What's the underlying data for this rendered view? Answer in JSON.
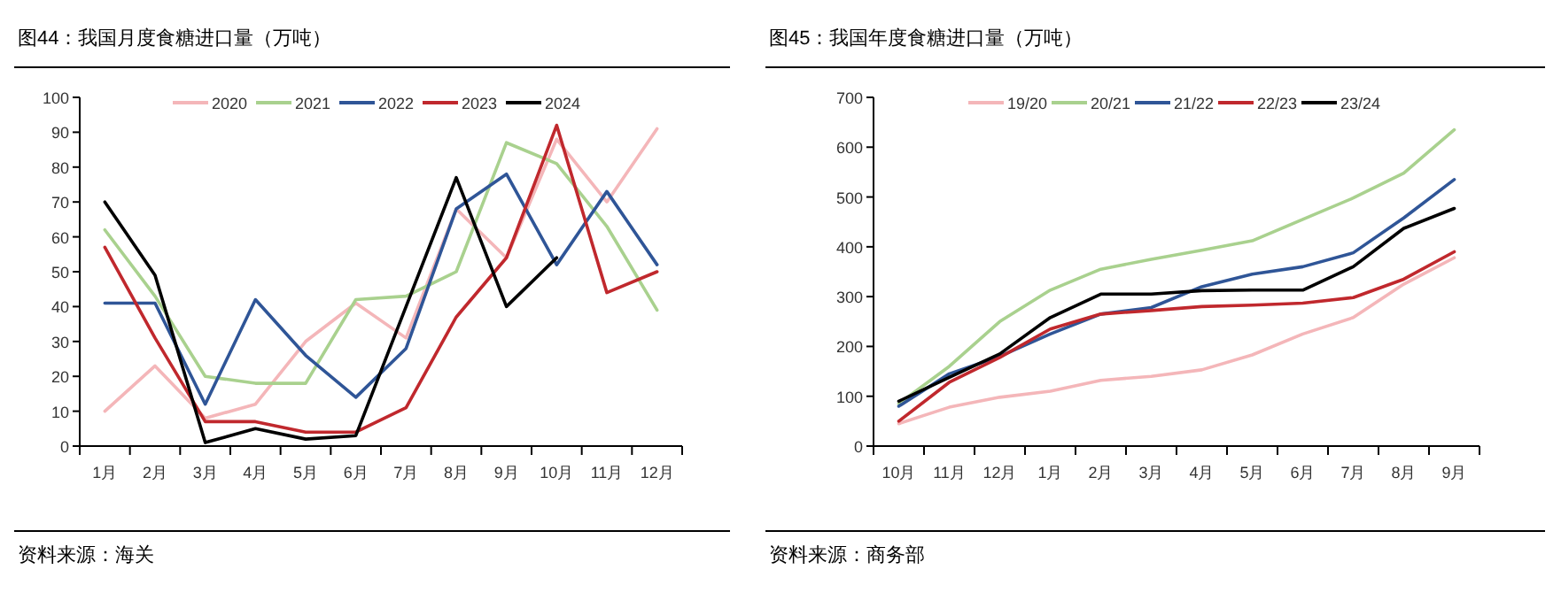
{
  "chart_data": [
    {
      "type": "line",
      "title": "图44：我国月度食糖进口量（万吨）",
      "categories": [
        "1月",
        "2月",
        "3月",
        "4月",
        "5月",
        "6月",
        "7月",
        "8月",
        "9月",
        "10月",
        "11月",
        "12月"
      ],
      "ylim": [
        0,
        100
      ],
      "yticks": [
        0,
        10,
        20,
        30,
        40,
        50,
        60,
        70,
        80,
        90,
        100
      ],
      "legend": "top",
      "series": [
        {
          "name": "2020",
          "color": "#f4b6b9",
          "values": [
            10,
            23,
            8,
            12,
            30,
            41,
            31,
            68,
            54,
            88,
            70,
            91
          ]
        },
        {
          "name": "2021",
          "color": "#a9d18e",
          "values": [
            62,
            43,
            20,
            18,
            18,
            42,
            43,
            50,
            87,
            81,
            63,
            39
          ]
        },
        {
          "name": "2022",
          "color": "#2f5597",
          "values": [
            41,
            41,
            12,
            42,
            26,
            14,
            28,
            68,
            78,
            52,
            73,
            52
          ]
        },
        {
          "name": "2023",
          "color": "#c0282d",
          "values": [
            57,
            31,
            7,
            7,
            4,
            4,
            11,
            37,
            54,
            92,
            44,
            50
          ]
        },
        {
          "name": "2024",
          "color": "#000000",
          "values": [
            70,
            49,
            1,
            5,
            2,
            3,
            40,
            77,
            40,
            54,
            null,
            null
          ]
        }
      ],
      "annotations": [
        "资料来源：海关"
      ]
    },
    {
      "type": "line",
      "title": "图45：我国年度食糖进口量（万吨）",
      "categories": [
        "10月",
        "11月",
        "12月",
        "1月",
        "2月",
        "3月",
        "4月",
        "5月",
        "6月",
        "7月",
        "8月",
        "9月"
      ],
      "ylim": [
        0,
        700
      ],
      "yticks": [
        0,
        100,
        200,
        300,
        400,
        500,
        600,
        700
      ],
      "legend": "top",
      "series": [
        {
          "name": "19/20",
          "color": "#f4b6b9",
          "values": [
            45,
            78,
            98,
            110,
            132,
            140,
            153,
            183,
            225,
            258,
            325,
            378
          ]
        },
        {
          "name": "20/21",
          "color": "#a9d18e",
          "values": [
            85,
            160,
            250,
            313,
            355,
            375,
            393,
            412,
            455,
            498,
            548,
            635
          ]
        },
        {
          "name": "21/22",
          "color": "#2f5597",
          "values": [
            80,
            145,
            180,
            225,
            265,
            278,
            320,
            345,
            360,
            388,
            458,
            535
          ]
        },
        {
          "name": "22/23",
          "color": "#c0282d",
          "values": [
            50,
            128,
            178,
            235,
            265,
            272,
            280,
            283,
            287,
            298,
            335,
            390
          ]
        },
        {
          "name": "23/24",
          "color": "#000000",
          "values": [
            90,
            138,
            185,
            258,
            305,
            305,
            312,
            313,
            313,
            360,
            437,
            477
          ]
        }
      ],
      "annotations": [
        "资料来源：商务部"
      ]
    }
  ]
}
